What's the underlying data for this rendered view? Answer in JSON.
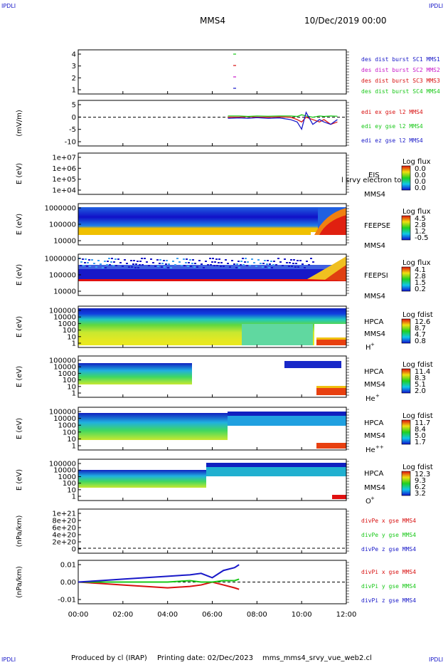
{
  "corner_label": "IPDLI",
  "header": {
    "mission": "MMS4",
    "datetime": "10/Dec/2019 00:00"
  },
  "footer": {
    "producer": "Produced by cl (IRAP)",
    "printing": "Printing date: 02/Dec/2023",
    "script": "mms_mms4_srvy_vue_web2.cl"
  },
  "x_axis": {
    "ticks": [
      "00:00",
      "02:00",
      "04:00",
      "06:00",
      "08:00",
      "10:00",
      "12:00"
    ],
    "range_hours": [
      0,
      12
    ]
  },
  "colors": {
    "red": "#d81010",
    "magenta": "#c818c8",
    "green": "#18c818",
    "blue": "#1818c8"
  },
  "panels": {
    "burst": {
      "ticks": [
        "4",
        "3",
        "2",
        "1"
      ],
      "legend": [
        {
          "text": "des dist burst SC1 MMS1",
          "color": "#1818c8"
        },
        {
          "text": "des dist burst SC2 MMS2",
          "color": "#c818c8"
        },
        {
          "text": "des dist burst SC3 MMS3",
          "color": "#d81010"
        },
        {
          "text": "des dist burst SC4 MMS4",
          "color": "#18c818"
        }
      ]
    },
    "edi": {
      "ylabel": "(mV/m)",
      "ticks": [
        "5",
        "0",
        "-5",
        "-10"
      ],
      "legend": [
        {
          "text": "edi ex gse l2 MMS4",
          "color": "#d81010"
        },
        {
          "text": "edi ey gse l2 MMS4",
          "color": "#18c818"
        },
        {
          "text": "edi ez gse l2 MMS4",
          "color": "#1818c8"
        }
      ]
    },
    "eis": {
      "ylabel": "E (eV)",
      "ticks": [
        "1e+07",
        "1e+06",
        "1e+05",
        "1e+04"
      ],
      "labels": [
        "EIS",
        "MMS4"
      ],
      "overlay": "l srvy electron to",
      "cbar_title": "Log flux",
      "cbar_values": [
        "0.0",
        "0.0",
        "0.0",
        "0.0"
      ]
    },
    "feepse": {
      "ylabel": "E (eV)",
      "ticks": [
        "1000000",
        "100000",
        "10000"
      ],
      "labels": [
        "FEEPSE",
        "MMS4"
      ],
      "cbar_title": "Log flux",
      "cbar_values": [
        "4.5",
        "2.8",
        "1.2",
        "-0.5"
      ]
    },
    "feepsi": {
      "ylabel": "E (eV)",
      "ticks": [
        "1000000",
        "100000",
        "10000"
      ],
      "labels": [
        "FEEPSI",
        "MMS4"
      ],
      "cbar_title": "Log flux",
      "cbar_values": [
        "4.1",
        "2.8",
        "1.5",
        "0.2"
      ]
    },
    "hpca_h": {
      "ylabel": "E (eV)",
      "ticks": [
        "100000",
        "10000",
        "1000",
        "100",
        "10",
        "1"
      ],
      "labels": [
        "HPCA",
        "MMS4"
      ],
      "species": "H",
      "charge": "+",
      "cbar_title": "Log fdist",
      "cbar_values": [
        "12.6",
        "8.7",
        "4.7",
        "0.8"
      ]
    },
    "hpca_he": {
      "ylabel": "E (eV)",
      "ticks": [
        "100000",
        "10000",
        "1000",
        "100",
        "10",
        "1"
      ],
      "labels": [
        "HPCA",
        "MMS4"
      ],
      "species": "He",
      "charge": "+",
      "cbar_title": "Log fdist",
      "cbar_values": [
        "11.4",
        "8.3",
        "5.1",
        "2.0"
      ]
    },
    "hpca_hepp": {
      "ylabel": "E (eV)",
      "ticks": [
        "100000",
        "10000",
        "1000",
        "100",
        "10",
        "1"
      ],
      "labels": [
        "HPCA",
        "MMS4"
      ],
      "species": "He",
      "charge": "++",
      "cbar_title": "Log fdist",
      "cbar_values": [
        "11.7",
        "8.4",
        "5.0",
        "1.7"
      ]
    },
    "hpca_o": {
      "ylabel": "E (eV)",
      "ticks": [
        "100000",
        "10000",
        "1000",
        "100",
        "10",
        "1"
      ],
      "labels": [
        "HPCA",
        "MMS4"
      ],
      "species": "O",
      "charge": "+",
      "cbar_title": "Log fdist",
      "cbar_values": [
        "12.3",
        "9.3",
        "6.2",
        "3.2"
      ]
    },
    "divpe": {
      "ylabel": "(nPa/km)",
      "ticks": [
        "1e+21",
        "8e+20",
        "6e+20",
        "4e+20",
        "2e+20",
        "0"
      ],
      "legend": [
        {
          "text": "divPe x gse MMS4",
          "color": "#d81010"
        },
        {
          "text": "divPe y gse MMS4",
          "color": "#18c818"
        },
        {
          "text": "divPe z gse MMS4",
          "color": "#1818c8"
        }
      ]
    },
    "divpi": {
      "ylabel": "(nPa/km)",
      "ticks": [
        "0.01",
        "0.00",
        "-0.01"
      ],
      "legend": [
        {
          "text": "divPi x gse MMS4",
          "color": "#d81010"
        },
        {
          "text": "divPi y gse MMS4",
          "color": "#18c818"
        },
        {
          "text": "divPi z gse MMS4",
          "color": "#1818c8"
        }
      ]
    }
  },
  "chart_data": [
    {
      "type": "scatter",
      "panel": "burst",
      "x_hours": [
        7.0,
        7.0,
        7.0,
        7.0
      ],
      "y": [
        4,
        3,
        2,
        1
      ],
      "series": [
        {
          "name": "des dist burst SC1 MMS1",
          "values": [
            1
          ]
        },
        {
          "name": "des dist burst SC2 MMS2",
          "values": [
            2
          ]
        },
        {
          "name": "des dist burst SC3 MMS3",
          "values": [
            3
          ]
        },
        {
          "name": "des dist burst SC4 MMS4",
          "values": [
            4
          ]
        }
      ],
      "ylim": [
        0.5,
        4.5
      ]
    },
    {
      "type": "line",
      "panel": "edi",
      "ylabel": "(mV/m)",
      "ylim": [
        -12,
        7
      ],
      "x_hours": [
        6.7,
        7.2,
        7.6,
        8.0,
        8.5,
        9.0,
        9.5,
        9.8,
        10.0,
        10.2,
        10.5,
        10.8,
        11.0,
        11.3,
        11.6
      ],
      "series": [
        {
          "name": "edi ex gse l2 MMS4",
          "values": [
            0,
            0,
            0.2,
            0,
            0,
            0.1,
            0,
            -1,
            -2,
            0,
            -1,
            -2,
            -1,
            -3,
            -2
          ]
        },
        {
          "name": "edi ey gse l2 MMS4",
          "values": [
            0.5,
            0.5,
            0.3,
            0.5,
            0.4,
            0.5,
            0.5,
            0.3,
            1,
            0.5,
            0,
            0.5,
            0.3,
            0.5,
            0.4
          ]
        },
        {
          "name": "edi ez gse l2 MMS4",
          "values": [
            -0.5,
            -0.3,
            -0.5,
            -0.2,
            -0.5,
            -0.3,
            -1,
            -2,
            -5,
            2,
            -3,
            -1,
            -2,
            -3,
            -1
          ]
        }
      ]
    },
    {
      "type": "heatmap",
      "panel": "eis",
      "ylabel": "E (eV)",
      "ylim": [
        10000.0,
        10000000.0
      ],
      "note": "no data"
    },
    {
      "type": "heatmap",
      "panel": "feepse",
      "ylabel": "E (eV)",
      "ylim": [
        10000.0,
        1000000.0
      ],
      "zlabel": "Log flux",
      "zrange": [
        -0.5,
        4.5
      ]
    },
    {
      "type": "heatmap",
      "panel": "feepsi",
      "ylabel": "E (eV)",
      "ylim": [
        10000.0,
        1000000.0
      ],
      "zlabel": "Log flux",
      "zrange": [
        0.2,
        4.1
      ]
    },
    {
      "type": "heatmap",
      "panel": "hpca_h",
      "ylabel": "E (eV)",
      "ylim": [
        1,
        100000.0
      ],
      "zlabel": "Log fdist",
      "zrange": [
        0.8,
        12.6
      ]
    },
    {
      "type": "heatmap",
      "panel": "hpca_he",
      "ylabel": "E (eV)",
      "ylim": [
        1,
        100000.0
      ],
      "zlabel": "Log fdist",
      "zrange": [
        2.0,
        11.4
      ]
    },
    {
      "type": "heatmap",
      "panel": "hpca_hepp",
      "ylabel": "E (eV)",
      "ylim": [
        1,
        100000.0
      ],
      "zlabel": "Log fdist",
      "zrange": [
        1.7,
        11.7
      ]
    },
    {
      "type": "heatmap",
      "panel": "hpca_o",
      "ylabel": "E (eV)",
      "ylim": [
        1,
        100000.0
      ],
      "zlabel": "Log fdist",
      "zrange": [
        3.2,
        12.3
      ]
    },
    {
      "type": "line",
      "panel": "divpe",
      "ylabel": "(nPa/km)",
      "ylim": [
        -1e+20,
        1.1e+21
      ],
      "note": "no data, zero reference line"
    },
    {
      "type": "line",
      "panel": "divpi",
      "ylabel": "(nPa/km)",
      "ylim": [
        -0.015,
        0.015
      ],
      "x_hours": [
        0,
        1,
        2,
        3,
        4,
        5,
        5.5,
        6,
        6.5,
        7.0,
        7.2
      ],
      "series": [
        {
          "name": "divPi x gse MMS4",
          "values": [
            0,
            -0.001,
            -0.002,
            -0.003,
            -0.004,
            -0.003,
            -0.002,
            0,
            -0.002,
            -0.004,
            -0.005
          ]
        },
        {
          "name": "divPi y gse MMS4",
          "values": [
            0,
            0,
            0,
            0,
            0,
            0.001,
            0,
            0,
            0.001,
            0.001,
            0.002
          ]
        },
        {
          "name": "divPi z gse MMS4",
          "values": [
            0,
            0.001,
            0.002,
            0.003,
            0.004,
            0.005,
            0.006,
            0.003,
            0.008,
            0.01,
            0.012
          ]
        }
      ]
    }
  ]
}
